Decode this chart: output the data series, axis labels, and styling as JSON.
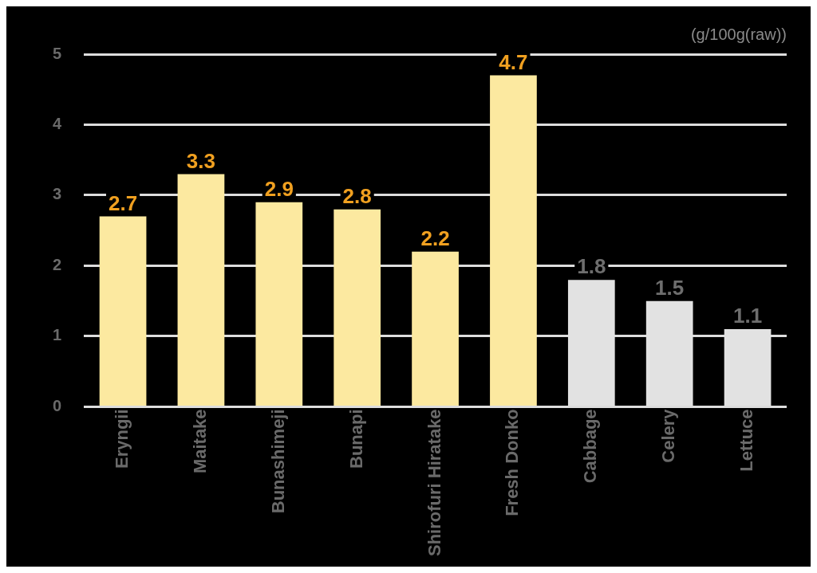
{
  "chart_data": {
    "type": "bar",
    "ylabel": "(g/100g(raw))",
    "categories": [
      "Eryngii",
      "Maitake",
      "Bunashimeji",
      "Bunapi",
      "Shirofuri Hiratake",
      "Fresh Donko",
      "Cabbage",
      "Celery",
      "Lettuce"
    ],
    "values": [
      2.7,
      3.3,
      2.9,
      2.8,
      2.2,
      4.7,
      1.8,
      1.5,
      1.1
    ],
    "colors": [
      "#fce9a0",
      "#fce9a0",
      "#fce9a0",
      "#fce9a0",
      "#fce9a0",
      "#fce9a0",
      "#e2e2e2",
      "#e2e2e2",
      "#e2e2e2"
    ],
    "ylim": [
      0,
      5
    ],
    "yticks": [
      0,
      1,
      2,
      3,
      4,
      5
    ],
    "grid": "y",
    "data_labels": true,
    "legend": false
  }
}
